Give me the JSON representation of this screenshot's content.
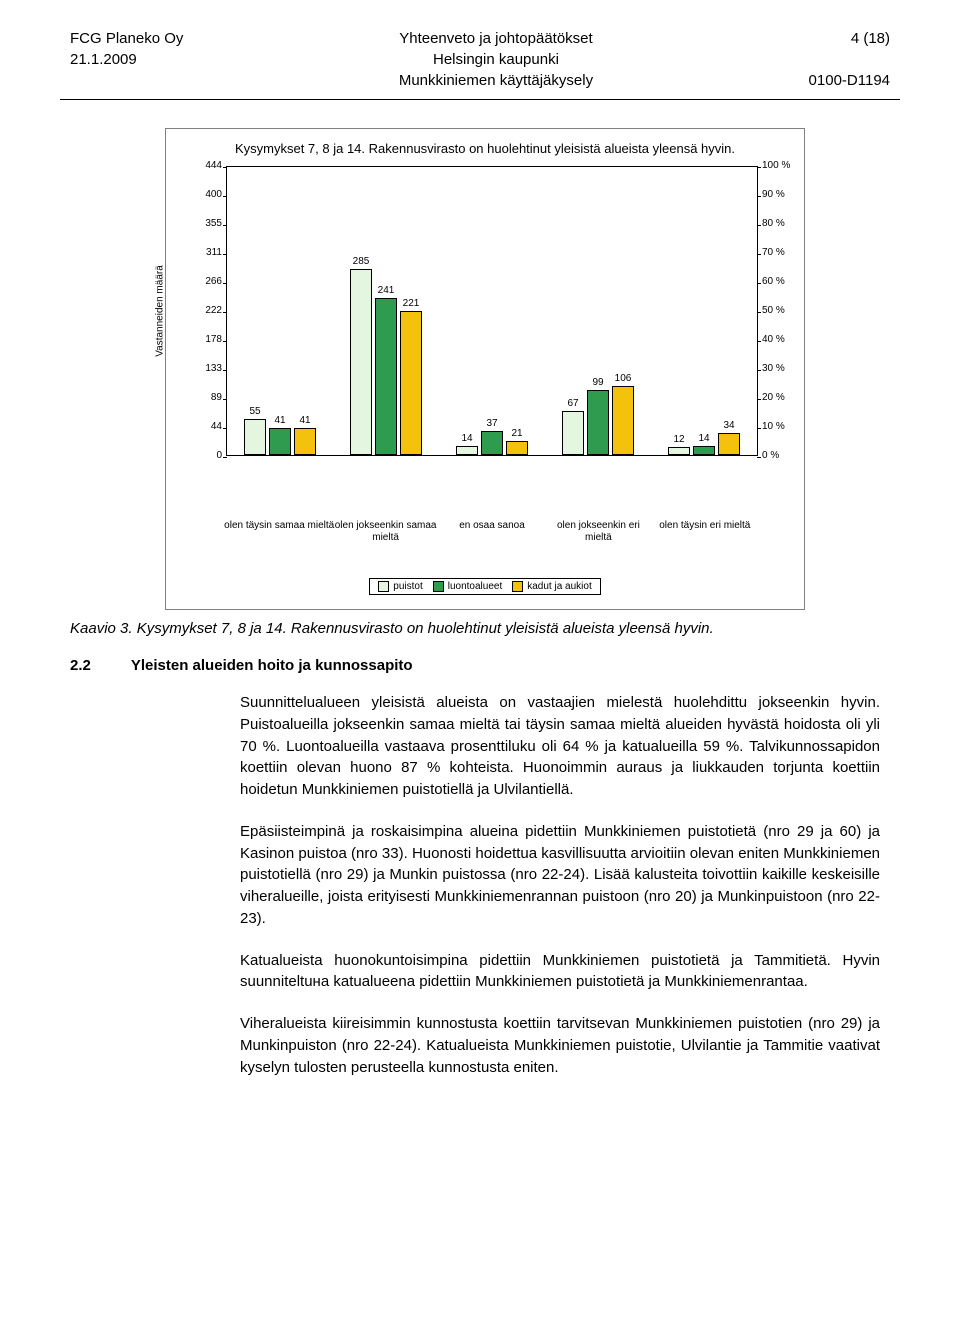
{
  "header": {
    "left1": "FCG Planeko Oy",
    "left2": "21.1.2009",
    "center1": "Yhteenveto ja johtopäätökset",
    "center2": "Helsingin kaupunki",
    "center3": "Munkkiniemen käyttäjäkysely",
    "right1": "4 (18)",
    "right2": "0100-D1194"
  },
  "chart": {
    "type": "bar",
    "title": "Kysymykset 7, 8 ja 14. Rakennusvirasto on huolehtinut yleisistä alueista yleensä hyvin.",
    "y_left": {
      "label": "Vastanneiden määrä",
      "min": 0,
      "max": 444,
      "step": 44.4,
      "ticks": [
        "0",
        "44",
        "89",
        "133",
        "178",
        "222",
        "266",
        "311",
        "355",
        "400",
        "444"
      ]
    },
    "y_right": {
      "min": 0,
      "max": 100,
      "step": 10,
      "ticks": [
        "0 %",
        "10 %",
        "20 %",
        "30 %",
        "40 %",
        "50 %",
        "60 %",
        "70 %",
        "80 %",
        "90 %",
        "100 %"
      ]
    },
    "categories": [
      "olen täysin samaa mieltä",
      "olen jokseenkin samaa\nmieltä",
      "en osaa sanoa",
      "olen jokseenkin eri\nmieltä",
      "olen täysin eri mieltä"
    ],
    "series": [
      {
        "name": "puistot",
        "color": "#e4f5e0",
        "values": [
          55,
          285,
          14,
          67,
          12
        ]
      },
      {
        "name": "luontoalueet",
        "color": "#2f9b4f",
        "values": [
          41,
          241,
          37,
          99,
          14
        ]
      },
      {
        "name": "kadut ja aukiot",
        "color": "#f4c20d",
        "values": [
          41,
          221,
          21,
          106,
          34
        ]
      }
    ],
    "background": "#ffffff",
    "grid_color": "#000000",
    "bar_border": "#000000",
    "label_fontsize": 10,
    "title_fontsize": 13
  },
  "caption": "Kaavio 3. Kysymykset 7, 8 ja 14. Rakennusvirasto on huolehtinut yleisistä alueista yleensä hyvin.",
  "section": {
    "num": "2.2",
    "title": "Yleisten alueiden hoito ja kunnossapito"
  },
  "paragraphs": [
    "Suunnittelualueen yleisistä alueista on vastaajien mielestä huolehdittu jokseenkin hyvin. Puistoalueilla jokseenkin samaa mieltä tai täysin samaa mieltä alueiden hyvästä hoidosta oli yli 70 %. Luontoalueilla vastaava prosenttiluku oli 64 % ja katualueilla 59 %. Talvikunnossapidon koettiin olevan huono 87 % kohteista. Huonoimmin auraus ja liukkauden torjunta koettiin hoidetun Munkkiniemen puistotiellä ja Ulvilantiellä.",
    "Epäsiisteimpinä ja roskaisimpina alueina pidettiin Munkkiniemen puistotietä (nro 29 ja 60) ja Kasinon puistoa (nro 33). Huonosti hoidettua kasvillisuutta arvioitiin olevan eniten Munkkiniemen puistotiellä (nro 29) ja Munkin puistossa (nro 22-24). Lisää kalusteita toivottiin kaikille keskeisille viheralueille, joista erityisesti Munkkiniemenrannan puistoon (nro 20) ja Munkinpuistoon (nro 22-23).",
    "Katualueista huonokuntoisimpina pidettiin Munkkiniemen puistotietä ja Tammitietä. Hyvin suunniteltuна katualueena pidettiin Munkkiniemen puistotietä ja Munkkiniemenrantaa.",
    "Viheralueista kiireisimmin kunnostusta koettiin tarvitsevan Munkkiniemen puistotien (nro 29) ja Munkinpuiston (nro 22-24). Katualueista Munkkiniemen puistotie, Ulvilantie ja Tammitie vaativat kyselyn tulosten perusteella kunnostusta eniten."
  ]
}
